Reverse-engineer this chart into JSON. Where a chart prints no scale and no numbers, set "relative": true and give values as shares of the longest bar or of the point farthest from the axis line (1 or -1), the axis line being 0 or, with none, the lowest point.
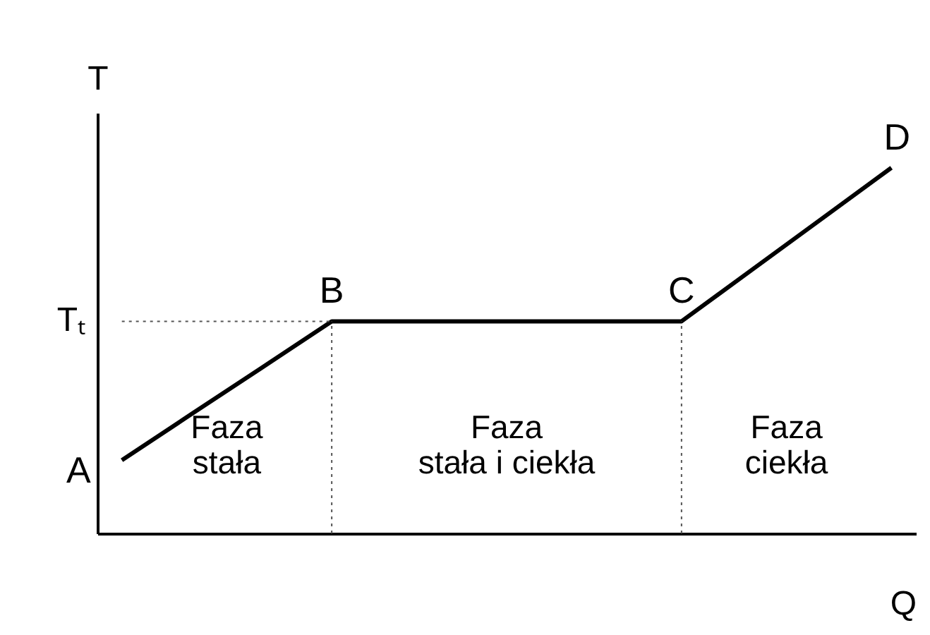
{
  "chart_data": {
    "type": "line",
    "relative": true,
    "xlabel": "Q",
    "ylabel": "T",
    "color": "#000000",
    "categories": [
      null,
      null,
      null,
      null,
      null,
      null,
      null,
      null,
      null,
      null,
      null,
      null
    ],
    "values": [
      0.2,
      0.327,
      0.453,
      0.58,
      0.58,
      0.58,
      0.58,
      0.58,
      0.58,
      0.72,
      0.86,
      1
    ],
    "ref_lines": [
      {
        "axis": "y",
        "value": 0.58,
        "label": "Tₜ",
        "line_style": "dotted"
      }
    ],
    "annotations": [
      "A",
      "B",
      "C",
      "D",
      "Faza\nstała",
      "Faza\nstała i ciekła",
      "Faza\nciekła"
    ],
    "grid": false,
    "marker": "none",
    "line_style": "solid"
  }
}
